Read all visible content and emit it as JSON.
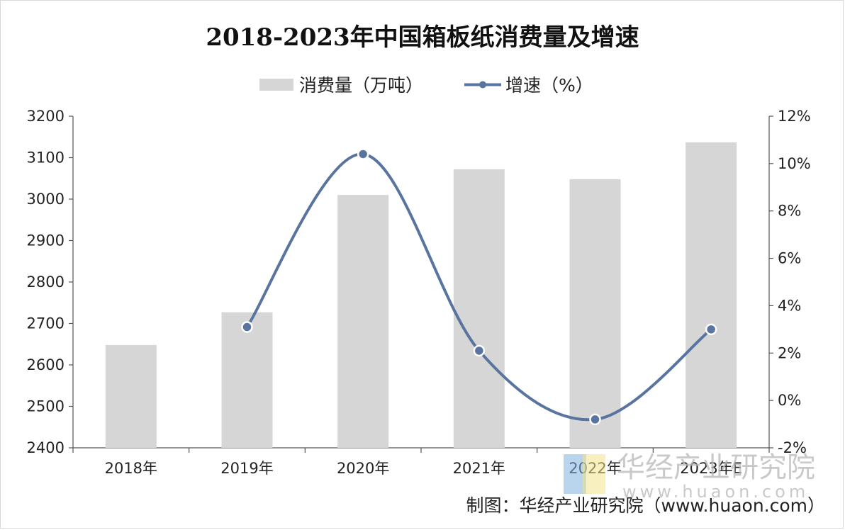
{
  "chart_data": {
    "type": "bar+line",
    "title": "2018-2023年中国箱板纸消费量及增速",
    "categories": [
      "2018年",
      "2019年",
      "2020年",
      "2021年",
      "2022年",
      "2023年E"
    ],
    "series": [
      {
        "name": "消费量（万吨）",
        "type": "bar",
        "axis": "left",
        "values": [
          2648,
          2727,
          3010,
          3072,
          3048,
          3137
        ]
      },
      {
        "name": "增速（%）",
        "type": "line",
        "axis": "right",
        "values": [
          null,
          3.1,
          10.4,
          2.1,
          -0.8,
          3.0
        ]
      }
    ],
    "ylim_left": [
      2400,
      3200
    ],
    "yticks_left": [
      "2400",
      "2500",
      "2600",
      "2700",
      "2800",
      "2900",
      "3000",
      "3100",
      "3200"
    ],
    "ylim_right": [
      -2,
      12
    ],
    "yticks_right": [
      "-2%",
      "0%",
      "2%",
      "4%",
      "6%",
      "8%",
      "10%",
      "12%"
    ],
    "legend_position": "top-center"
  },
  "colors": {
    "bar": "#d6d6d6",
    "line": "#5a74a0",
    "axis": "#555555"
  },
  "source": "制图：华经产业研究院（www.huaon.com）",
  "watermark": {
    "text": "华经产业研究院",
    "url": "www.huaon.com"
  }
}
